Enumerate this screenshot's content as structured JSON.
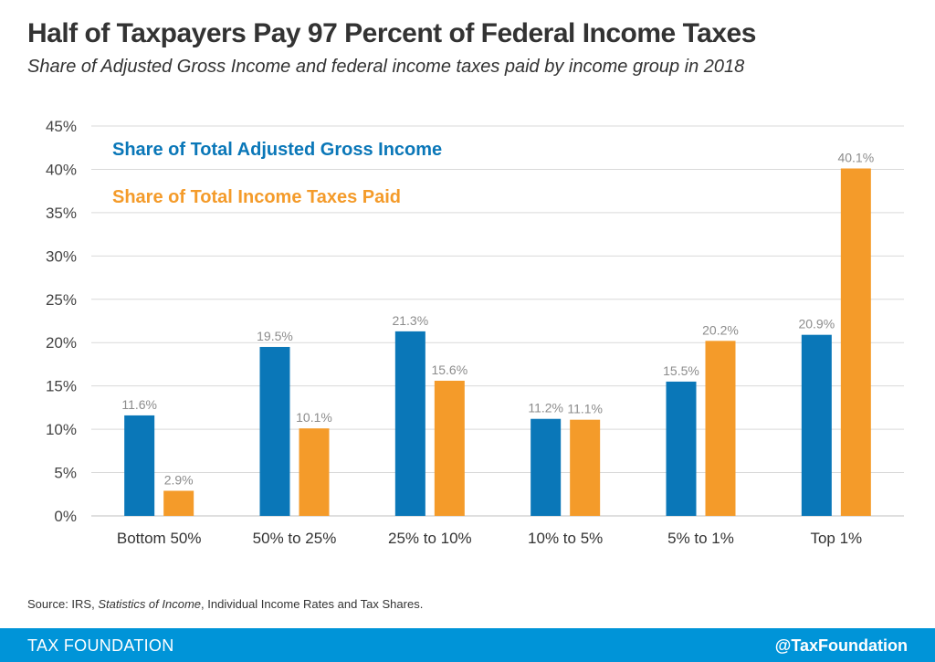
{
  "chart_data": {
    "type": "bar",
    "title": "Half of Taxpayers Pay 97 Percent of Federal Income Taxes",
    "subtitle": "Share of Adjusted Gross Income and federal income taxes paid by income group in 2018",
    "categories": [
      "Bottom 50%",
      "50% to 25%",
      "25% to 10%",
      "10% to 5%",
      "5% to 1%",
      "Top 1%"
    ],
    "series": [
      {
        "name": "Share of Total Adjusted Gross Income",
        "color": "#0a77b8",
        "values": [
          11.6,
          19.5,
          21.3,
          11.2,
          15.5,
          20.9
        ],
        "labels": [
          "11.6%",
          "19.5%",
          "21.3%",
          "11.2%",
          "15.5%",
          "20.9%"
        ]
      },
      {
        "name": "Share of Total Income Taxes Paid",
        "color": "#f49b2a",
        "values": [
          2.9,
          10.1,
          15.6,
          11.1,
          20.2,
          40.1
        ],
        "labels": [
          "2.9%",
          "10.1%",
          "15.6%",
          "11.1%",
          "20.2%",
          "40.1%"
        ]
      }
    ],
    "ylim": [
      0,
      45
    ],
    "yticks": [
      0,
      5,
      10,
      15,
      20,
      25,
      30,
      35,
      40,
      45
    ],
    "ytick_labels": [
      "0%",
      "5%",
      "10%",
      "15%",
      "20%",
      "25%",
      "30%",
      "35%",
      "40%",
      "45%"
    ],
    "xlabel": "",
    "ylabel": "",
    "legend": "top-left",
    "grid": true
  },
  "source": {
    "prefix": "Source: IRS, ",
    "italic": "Statistics of Income",
    "suffix": ", Individual Income Rates and Tax Shares."
  },
  "footer": {
    "left": "TAX FOUNDATION",
    "right": "@TaxFoundation",
    "bg_color": "#0094d8"
  }
}
